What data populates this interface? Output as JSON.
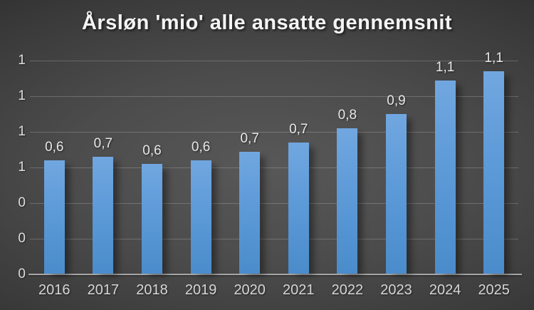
{
  "chart_data": {
    "type": "bar",
    "title": "Årsløn 'mio' alle ansatte gennemsnit",
    "categories": [
      "2016",
      "2017",
      "2018",
      "2019",
      "2020",
      "2021",
      "2022",
      "2023",
      "2024",
      "2025"
    ],
    "values": [
      0.64,
      0.66,
      0.62,
      0.64,
      0.69,
      0.74,
      0.82,
      0.9,
      1.09,
      1.14
    ],
    "value_labels": [
      "0,6",
      "0,7",
      "0,6",
      "0,6",
      "0,7",
      "0,7",
      "0,8",
      "0,9",
      "1,1",
      "1,1"
    ],
    "xlabel": "",
    "ylabel": "",
    "ylim": [
      0,
      1.2
    ],
    "ytick_step": 0.2,
    "ytick_values_bottom_to_top": [
      0,
      0.2,
      0.4,
      0.6,
      0.8,
      1.0,
      1.2
    ],
    "ytick_labels_bottom_to_top": [
      "0",
      "0",
      "0",
      "1",
      "1",
      "1",
      "1"
    ],
    "grid": true,
    "legend": false,
    "colors": {
      "bar_top": "#71a7e0",
      "bar_bottom": "#4a8ccb",
      "background_center": "#585858",
      "background_edge": "#222222",
      "gridline": "#6f6f6f",
      "axis_line": "#a6a6a6",
      "title_text": "#f4f4f4",
      "tick_text": "#d6d6d6",
      "value_label_text": "#e8e8e8"
    }
  }
}
